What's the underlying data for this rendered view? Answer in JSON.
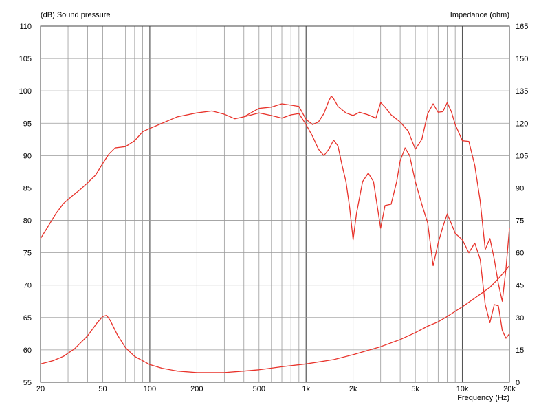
{
  "chart_data": {
    "type": "line",
    "title": "",
    "left_axis_label": "(dB)  Sound pressure",
    "right_axis_label": "Impedance  (ohm)",
    "x_axis_label": "Frequency  (Hz)",
    "x_scale": "log",
    "xlim": [
      20,
      20000
    ],
    "ylim_left": [
      55,
      110
    ],
    "ylim_right": [
      0,
      165
    ],
    "grid": true,
    "x_ticks": [
      20,
      50,
      100,
      200,
      500,
      1000,
      2000,
      5000,
      10000,
      20000
    ],
    "x_tick_labels": [
      "20",
      "50",
      "100",
      "200",
      "500",
      "1k",
      "2k",
      "5k",
      "10k",
      "20k"
    ],
    "y_ticks_left": [
      "110",
      "105",
      "100",
      "95",
      "90",
      "85",
      "80",
      "75",
      "70",
      "65",
      "60",
      "55"
    ],
    "y_ticks_right": [
      "165",
      "150",
      "135",
      "120",
      "105",
      "90",
      "75",
      "60",
      "45",
      "30",
      "15",
      "0"
    ],
    "line_color": "#e8322a",
    "series": [
      {
        "axis": "left",
        "points": [
          [
            20,
            77.2
          ],
          [
            22,
            78.8
          ],
          [
            25,
            81
          ],
          [
            28,
            82.6
          ],
          [
            32,
            83.8
          ],
          [
            36,
            84.8
          ],
          [
            40,
            85.8
          ],
          [
            45,
            87
          ],
          [
            50,
            88.8
          ],
          [
            55,
            90.3
          ],
          [
            60,
            91.2
          ],
          [
            65,
            91.3
          ],
          [
            70,
            91.4
          ],
          [
            80,
            92.3
          ],
          [
            90,
            93.7
          ],
          [
            100,
            94.2
          ],
          [
            120,
            95
          ],
          [
            150,
            96
          ],
          [
            200,
            96.6
          ],
          [
            250,
            96.9
          ],
          [
            300,
            96.4
          ],
          [
            350,
            95.7
          ],
          [
            400,
            96
          ],
          [
            500,
            97.3
          ],
          [
            600,
            97.5
          ],
          [
            700,
            98
          ],
          [
            800,
            97.8
          ],
          [
            900,
            97.6
          ],
          [
            1000,
            95.6
          ],
          [
            1100,
            94.8
          ],
          [
            1200,
            95.2
          ],
          [
            1300,
            96.5
          ],
          [
            1400,
            98.5
          ],
          [
            1450,
            99.2
          ],
          [
            1500,
            98.8
          ],
          [
            1600,
            97.6
          ],
          [
            1800,
            96.6
          ],
          [
            2000,
            96.2
          ],
          [
            2200,
            96.7
          ],
          [
            2500,
            96.3
          ],
          [
            2800,
            95.8
          ],
          [
            3000,
            98.2
          ],
          [
            3200,
            97.5
          ],
          [
            3500,
            96.3
          ],
          [
            4000,
            95.2
          ],
          [
            4500,
            93.8
          ],
          [
            5000,
            91
          ],
          [
            5500,
            92.5
          ],
          [
            6000,
            96.5
          ],
          [
            6500,
            98
          ],
          [
            7000,
            96.7
          ],
          [
            7500,
            96.8
          ],
          [
            8000,
            98.2
          ],
          [
            8500,
            96.8
          ],
          [
            9000,
            94.8
          ],
          [
            10000,
            92.3
          ],
          [
            11000,
            92.2
          ],
          [
            12000,
            88.5
          ],
          [
            13000,
            83
          ],
          [
            14000,
            75.5
          ],
          [
            15000,
            77.2
          ],
          [
            16000,
            74
          ],
          [
            17000,
            70.2
          ],
          [
            18000,
            67.5
          ],
          [
            19000,
            72.5
          ],
          [
            20000,
            78.8
          ]
        ]
      },
      {
        "axis": "left",
        "points": [
          [
            400,
            96
          ],
          [
            500,
            96.6
          ],
          [
            600,
            96.2
          ],
          [
            700,
            95.8
          ],
          [
            800,
            96.3
          ],
          [
            900,
            96.5
          ],
          [
            1000,
            94.8
          ],
          [
            1100,
            93
          ],
          [
            1200,
            91
          ],
          [
            1300,
            90
          ],
          [
            1400,
            91
          ],
          [
            1500,
            92.4
          ],
          [
            1600,
            91.5
          ],
          [
            1700,
            88.5
          ],
          [
            1800,
            86
          ],
          [
            1900,
            82
          ],
          [
            2000,
            77
          ],
          [
            2100,
            81
          ],
          [
            2300,
            86
          ],
          [
            2500,
            87.3
          ],
          [
            2700,
            86
          ],
          [
            3000,
            78.8
          ],
          [
            3200,
            82.3
          ],
          [
            3500,
            82.5
          ],
          [
            3800,
            86
          ],
          [
            4000,
            89.2
          ],
          [
            4300,
            91.2
          ],
          [
            4600,
            90
          ],
          [
            5000,
            86
          ],
          [
            5500,
            82.5
          ],
          [
            6000,
            79.6
          ],
          [
            6500,
            73
          ],
          [
            7000,
            76.5
          ],
          [
            7500,
            79
          ],
          [
            8000,
            81
          ],
          [
            8500,
            79.5
          ],
          [
            9000,
            78
          ],
          [
            10000,
            77
          ],
          [
            11000,
            75
          ],
          [
            12000,
            76.5
          ],
          [
            13000,
            74
          ],
          [
            14000,
            67
          ],
          [
            15000,
            64.2
          ],
          [
            16000,
            67
          ],
          [
            17000,
            66.8
          ],
          [
            18000,
            63
          ],
          [
            19000,
            61.8
          ],
          [
            20000,
            62.5
          ]
        ]
      },
      {
        "axis": "right",
        "points": [
          [
            20,
            8.5
          ],
          [
            24,
            10
          ],
          [
            28,
            12
          ],
          [
            33,
            15.5
          ],
          [
            40,
            21.5
          ],
          [
            46,
            27.5
          ],
          [
            50,
            30.5
          ],
          [
            53,
            31
          ],
          [
            56,
            28.5
          ],
          [
            62,
            22
          ],
          [
            70,
            16
          ],
          [
            80,
            12
          ],
          [
            100,
            8.2
          ],
          [
            120,
            6.5
          ],
          [
            150,
            5.2
          ],
          [
            200,
            4.5
          ],
          [
            300,
            4.5
          ],
          [
            400,
            5.2
          ],
          [
            500,
            5.8
          ],
          [
            700,
            7.2
          ],
          [
            1000,
            8.5
          ],
          [
            1500,
            10.5
          ],
          [
            2000,
            12.8
          ],
          [
            3000,
            16.5
          ],
          [
            4000,
            19.8
          ],
          [
            5000,
            23
          ],
          [
            6000,
            26
          ],
          [
            7000,
            28
          ],
          [
            8000,
            30.5
          ],
          [
            10000,
            35
          ],
          [
            12000,
            39
          ],
          [
            15000,
            44
          ],
          [
            17000,
            48
          ],
          [
            20000,
            54
          ]
        ]
      }
    ]
  }
}
